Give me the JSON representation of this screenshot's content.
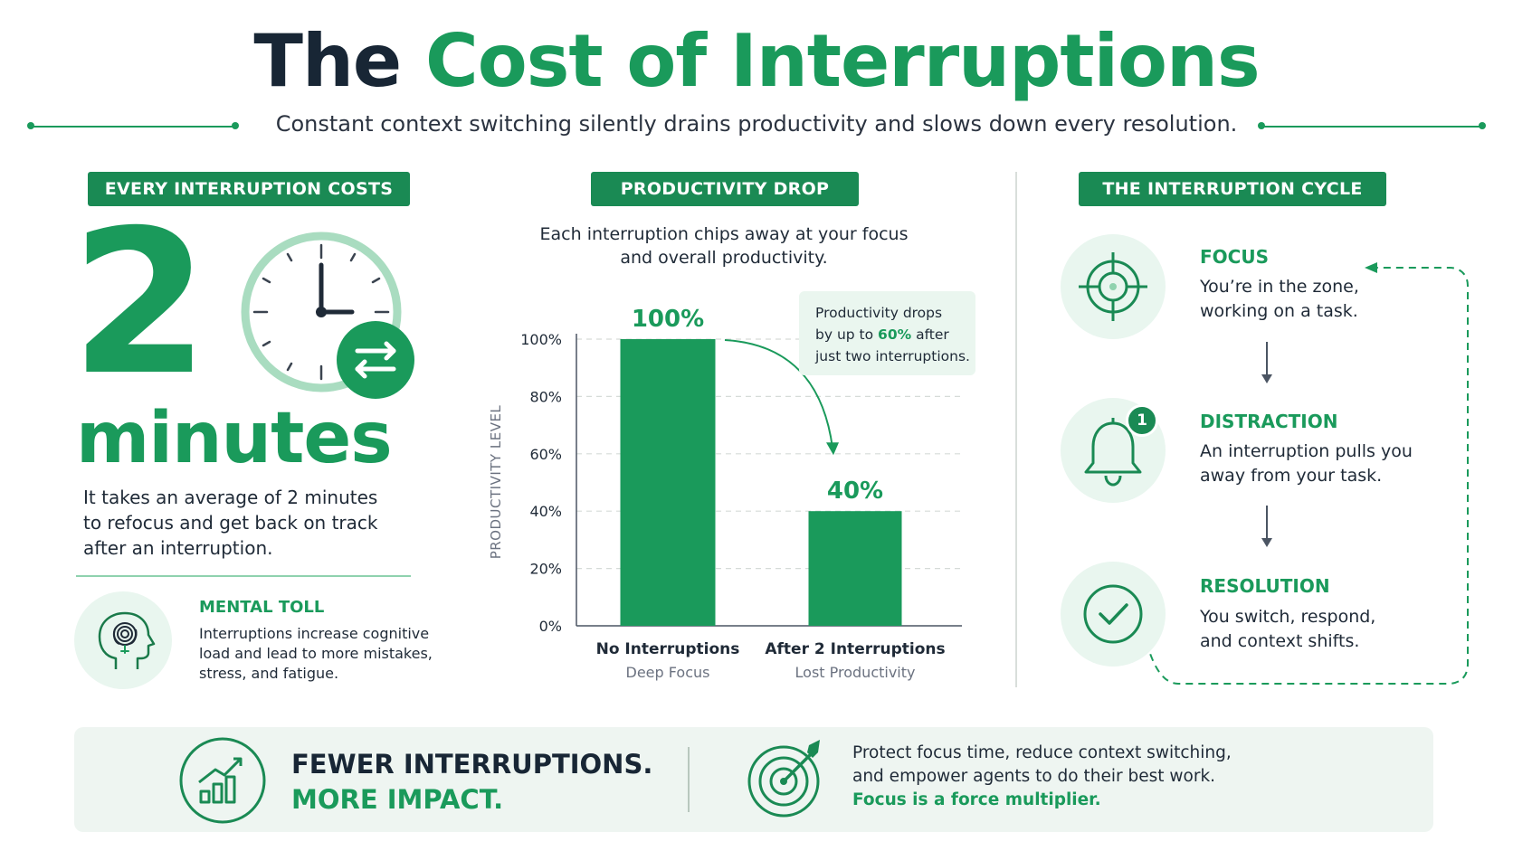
{
  "header": {
    "title_part1": "The",
    "title_part2": "Cost of Interruptions",
    "subtitle": "Constant context switching silently drains productivity and slows down every resolution."
  },
  "left": {
    "pill": "EVERY INTERRUPTION COSTS",
    "big_number": "2",
    "unit": "minutes",
    "description": [
      "It takes an average of 2 minutes",
      "to refocus and get back on track",
      "after an interruption."
    ],
    "mental_toll": {
      "title": "MENTAL TOLL",
      "text": [
        "Interruptions increase cognitive",
        "load and lead to more mistakes,",
        "stress, and fatigue."
      ]
    }
  },
  "middle": {
    "pill": "PRODUCTIVITY DROP",
    "intro": [
      "Each interruption chips away at your focus",
      "and overall productivity."
    ],
    "callout": {
      "line1": "Productivity drops",
      "line2_pre": "by up to ",
      "line2_hl": "60%",
      "line2_post": " after",
      "line3": "just two interruptions."
    }
  },
  "chart_data": {
    "type": "bar",
    "categories": [
      "No Interruptions",
      "After 2 Interruptions"
    ],
    "subcategories": [
      "Deep Focus",
      "Lost Productivity"
    ],
    "values": [
      100,
      40
    ],
    "value_labels": [
      "100%",
      "40%"
    ],
    "ylabel": "PRODUCTIVITY LEVEL",
    "ylim": [
      0,
      100
    ],
    "yticks": [
      0,
      20,
      40,
      60,
      80,
      100
    ],
    "ytick_labels": [
      "0%",
      "20%",
      "40%",
      "60%",
      "80%",
      "100%"
    ],
    "grid": true,
    "bar_color": "#1a9a5b"
  },
  "right": {
    "pill": "THE INTERRUPTION CYCLE",
    "badge": "1",
    "steps": [
      {
        "title": "FOCUS",
        "text": [
          "You’re in the zone,",
          "working on a task."
        ],
        "icon": "target-icon"
      },
      {
        "title": "DISTRACTION",
        "text": [
          "An interruption pulls you",
          "away from your task."
        ],
        "icon": "bell-icon"
      },
      {
        "title": "RESOLUTION",
        "text": [
          "You switch, respond,",
          "and context shifts."
        ],
        "icon": "check-circle-icon"
      }
    ]
  },
  "banner": {
    "headline1": "FEWER INTERRUPTIONS.",
    "headline2": "MORE IMPACT.",
    "line1": "Protect focus time, reduce context switching,",
    "line2": "and empower agents to do their best work.",
    "line3": "Focus is a force multiplier."
  },
  "colors": {
    "accent": "#1a9a5b",
    "pill_bg": "#1a8a54",
    "dark_text": "#182635",
    "soft_bg": "#e9f6ef"
  }
}
